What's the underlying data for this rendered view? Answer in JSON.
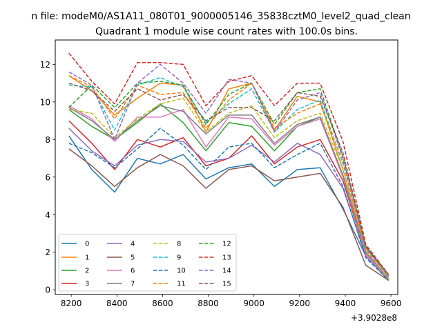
{
  "chart_data": {
    "type": "line",
    "suptitle": "n file: modeM0/AS1A11_080T01_9000005146_35838cztM0_level2_quad_clean",
    "title": "Quadrant 1 module wise count rates with 100.0s bins.",
    "xlabel": "",
    "ylabel": "",
    "x_offset_label": "+3.9028e8",
    "xlim": [
      8130,
      9630
    ],
    "ylim": [
      -0.25,
      13.3
    ],
    "x": [
      8190,
      8290,
      8390,
      8490,
      8590,
      8690,
      8790,
      8890,
      8990,
      9090,
      9190,
      9290,
      9390,
      9490,
      9590
    ],
    "xticks": [
      8200,
      8400,
      8600,
      8800,
      9000,
      9200,
      9400,
      9600
    ],
    "yticks": [
      0,
      2,
      4,
      6,
      8,
      10,
      12
    ],
    "legend": {
      "placement": "lower-left",
      "columns": 4
    },
    "series": [
      {
        "name": "0",
        "color": "#1f77b4",
        "dash": "solid",
        "values": [
          8.2,
          6.4,
          5.2,
          7.0,
          6.7,
          7.2,
          5.9,
          6.5,
          6.7,
          5.5,
          6.4,
          6.5,
          4.3,
          1.8,
          0.5
        ]
      },
      {
        "name": "1",
        "color": "#ff7f0e",
        "dash": "solid",
        "values": [
          11.4,
          10.6,
          9.3,
          10.2,
          11.0,
          10.9,
          8.4,
          10.7,
          11.0,
          8.5,
          10.3,
          10.0,
          6.4,
          2.2,
          0.7
        ]
      },
      {
        "name": "2",
        "color": "#2ca02c",
        "dash": "solid",
        "values": [
          9.6,
          8.7,
          8.0,
          8.9,
          9.9,
          8.9,
          7.4,
          8.9,
          8.7,
          7.4,
          8.7,
          9.2,
          6.1,
          2.0,
          0.6
        ]
      },
      {
        "name": "3",
        "color": "#d62728",
        "dash": "solid",
        "values": [
          9.0,
          7.8,
          6.4,
          8.0,
          7.6,
          8.1,
          6.6,
          7.0,
          8.2,
          6.7,
          7.6,
          8.0,
          5.8,
          1.9,
          0.6
        ]
      },
      {
        "name": "4",
        "color": "#9467bd",
        "dash": "solid",
        "values": [
          8.6,
          7.4,
          6.6,
          7.7,
          8.0,
          7.9,
          6.8,
          7.0,
          7.7,
          6.8,
          7.8,
          7.2,
          5.4,
          1.8,
          0.5
        ]
      },
      {
        "name": "5",
        "color": "#8c564b",
        "dash": "solid",
        "values": [
          7.5,
          6.6,
          5.5,
          6.5,
          7.2,
          6.6,
          5.4,
          6.4,
          6.6,
          5.8,
          6.0,
          6.2,
          4.4,
          1.3,
          0.5
        ]
      },
      {
        "name": "6",
        "color": "#e377c2",
        "dash": "solid",
        "values": [
          9.8,
          9.1,
          7.9,
          9.2,
          9.2,
          9.6,
          7.6,
          9.2,
          9.1,
          7.7,
          8.7,
          9.1,
          6.0,
          1.9,
          0.6
        ]
      },
      {
        "name": "7",
        "color": "#7f7f7f",
        "dash": "solid",
        "values": [
          9.7,
          9.0,
          8.0,
          9.0,
          9.8,
          9.5,
          8.3,
          9.3,
          9.3,
          7.8,
          8.8,
          9.2,
          6.1,
          2.0,
          0.6
        ]
      },
      {
        "name": "8",
        "color": "#bcbd22",
        "dash": "dashed",
        "values": [
          9.6,
          9.4,
          8.1,
          9.1,
          9.9,
          10.2,
          8.4,
          9.4,
          9.8,
          8.1,
          9.0,
          9.4,
          6.4,
          2.1,
          0.6
        ]
      },
      {
        "name": "9",
        "color": "#17becf",
        "dash": "dashed",
        "values": [
          10.9,
          10.8,
          8.5,
          10.9,
          11.3,
          10.8,
          8.9,
          9.9,
          10.7,
          8.4,
          9.6,
          10.1,
          6.7,
          2.3,
          0.7
        ]
      },
      {
        "name": "10",
        "color": "#1f77b4",
        "dash": "dashed",
        "values": [
          7.8,
          7.3,
          6.5,
          7.5,
          8.6,
          7.7,
          6.4,
          7.6,
          7.8,
          6.5,
          7.2,
          7.8,
          5.5,
          1.7,
          0.5
        ]
      },
      {
        "name": "11",
        "color": "#ff7f0e",
        "dash": "dashed",
        "values": [
          11.4,
          10.8,
          9.1,
          10.9,
          10.4,
          10.5,
          8.6,
          10.1,
          11.0,
          8.6,
          9.4,
          9.9,
          6.8,
          2.2,
          0.7
        ]
      },
      {
        "name": "12",
        "color": "#2ca02c",
        "dash": "dashed",
        "values": [
          9.7,
          10.9,
          9.7,
          11.0,
          11.1,
          10.9,
          8.8,
          10.4,
          11.0,
          8.8,
          10.5,
          10.7,
          7.1,
          2.3,
          0.8
        ]
      },
      {
        "name": "13",
        "color": "#d62728",
        "dash": "dashed",
        "values": [
          12.6,
          11.1,
          9.9,
          12.1,
          12.1,
          12.0,
          9.8,
          11.1,
          11.4,
          9.8,
          11.0,
          11.0,
          7.9,
          2.4,
          0.8
        ]
      },
      {
        "name": "14",
        "color": "#9467bd",
        "dash": "dashed",
        "values": [
          11.6,
          10.9,
          8.0,
          11.0,
          12.0,
          11.0,
          9.4,
          11.2,
          11.0,
          8.4,
          10.1,
          10.5,
          7.0,
          2.2,
          0.7
        ]
      },
      {
        "name": "15",
        "color": "#8c564b",
        "dash": "dashed",
        "values": [
          11.0,
          10.6,
          9.5,
          10.7,
          10.1,
          10.4,
          9.0,
          9.7,
          9.7,
          9.0,
          10.5,
          10.3,
          7.3,
          2.3,
          0.8
        ]
      }
    ]
  }
}
